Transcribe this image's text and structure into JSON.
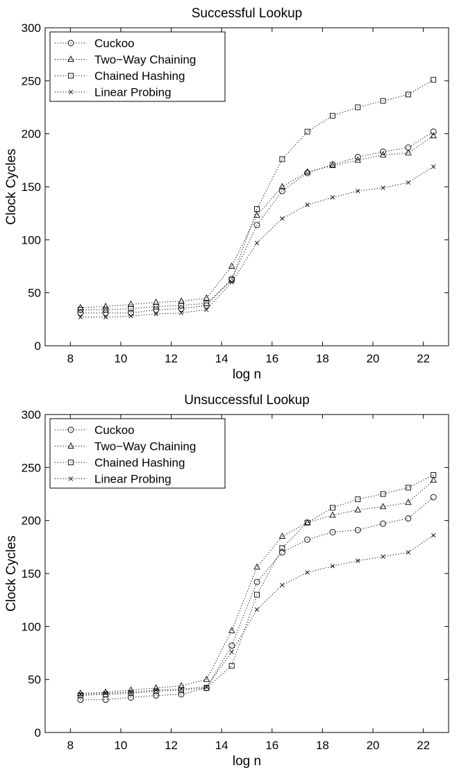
{
  "chart_data": [
    {
      "type": "line",
      "title": "Successful Lookup",
      "xlabel": "log n",
      "ylabel": "Clock Cycles",
      "xlim": [
        7,
        23
      ],
      "ylim": [
        0,
        300
      ],
      "xticks": [
        8,
        10,
        12,
        14,
        16,
        18,
        20,
        22
      ],
      "yticks": [
        0,
        50,
        100,
        150,
        200,
        250,
        300
      ],
      "grid": false,
      "legend_position": "top-left",
      "x": [
        8.4,
        9.4,
        10.4,
        11.4,
        12.4,
        13.4,
        14.4,
        15.4,
        16.4,
        17.4,
        18.4,
        19.4,
        20.4,
        21.4,
        22.4
      ],
      "series": [
        {
          "name": "Cuckoo",
          "marker": "circle",
          "values": [
            31,
            31,
            31,
            34,
            35,
            38,
            63,
            114,
            146,
            163,
            171,
            178,
            183,
            187,
            202
          ]
        },
        {
          "name": "Two−Way Chaining",
          "marker": "triangle",
          "values": [
            36,
            37,
            39,
            41,
            42,
            45,
            75,
            123,
            150,
            164,
            170,
            175,
            180,
            182,
            198
          ]
        },
        {
          "name": "Chained Hashing",
          "marker": "square",
          "values": [
            34,
            34,
            35,
            37,
            38,
            40,
            62,
            129,
            176,
            202,
            217,
            225,
            231,
            237,
            251
          ]
        },
        {
          "name": "Linear Probing",
          "marker": "x",
          "values": [
            27,
            27,
            28,
            30,
            31,
            34,
            60,
            97,
            120,
            133,
            140,
            146,
            149,
            154,
            169
          ]
        }
      ]
    },
    {
      "type": "line",
      "title": "Unsuccessful Lookup",
      "xlabel": "log n",
      "ylabel": "Clock Cycles",
      "xlim": [
        7,
        23
      ],
      "ylim": [
        0,
        300
      ],
      "xticks": [
        8,
        10,
        12,
        14,
        16,
        18,
        20,
        22
      ],
      "yticks": [
        0,
        50,
        100,
        150,
        200,
        250,
        300
      ],
      "grid": false,
      "legend_position": "top-left",
      "x": [
        8.4,
        9.4,
        10.4,
        11.4,
        12.4,
        13.4,
        14.4,
        15.4,
        16.4,
        17.4,
        18.4,
        19.4,
        20.4,
        21.4,
        22.4
      ],
      "series": [
        {
          "name": "Cuckoo",
          "marker": "circle",
          "values": [
            31,
            31,
            33,
            35,
            36,
            42,
            82,
            142,
            170,
            182,
            189,
            191,
            197,
            202,
            222
          ]
        },
        {
          "name": "Two−Way Chaining",
          "marker": "triangle",
          "values": [
            37,
            38,
            40,
            42,
            44,
            50,
            96,
            156,
            185,
            198,
            205,
            210,
            213,
            217,
            238
          ]
        },
        {
          "name": "Chained Hashing",
          "marker": "square",
          "values": [
            35,
            36,
            37,
            39,
            40,
            42,
            63,
            130,
            174,
            198,
            212,
            220,
            225,
            231,
            243
          ]
        },
        {
          "name": "Linear Probing",
          "marker": "x",
          "values": [
            36,
            37,
            38,
            40,
            41,
            43,
            76,
            116,
            139,
            151,
            157,
            162,
            166,
            170,
            186
          ]
        }
      ]
    }
  ]
}
